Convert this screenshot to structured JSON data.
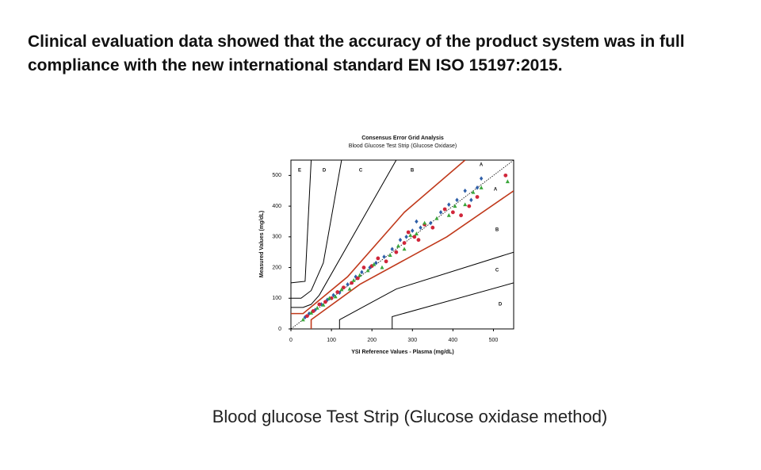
{
  "header": {
    "title": "Clinical evaluation data showed that the accuracy of the product system was in full compliance with the new international standard EN ISO 15197:2015."
  },
  "caption": "Blood glucose Test Strip (Glucose oxidase method)",
  "chart_data": {
    "type": "scatter",
    "title": "Consensus Error Grid Analysis",
    "subtitle": "Blood Glucose Test Strip (Glucose Oxidase)",
    "x_label": "YSI Reference Values - Plasma (mg/dL)",
    "y_label": "Measured Values (mg/dL)",
    "xlim": [
      0,
      550
    ],
    "ylim": [
      0,
      550
    ],
    "xticks": [
      0,
      100,
      200,
      300,
      400,
      500
    ],
    "yticks": [
      0,
      100,
      200,
      300,
      400,
      500
    ],
    "zone_labels": [
      "E",
      "D",
      "C",
      "B",
      "A",
      "A",
      "B",
      "C",
      "D"
    ],
    "boundaries": [
      {
        "color": "#c0391b",
        "x": [
          0,
          30,
          140,
          280,
          430
        ],
        "y": [
          50,
          50,
          170,
          380,
          550
        ]
      },
      {
        "color": "#c0391b",
        "x": [
          50,
          50,
          170,
          385,
          550
        ],
        "y": [
          0,
          30,
          145,
          300,
          450
        ]
      },
      {
        "color": "#000000",
        "x": [
          0,
          30,
          50,
          70,
          260
        ],
        "y": [
          70,
          70,
          80,
          110,
          550
        ]
      },
      {
        "color": "#000000",
        "x": [
          120,
          120,
          260,
          550
        ],
        "y": [
          0,
          30,
          130,
          250
        ]
      },
      {
        "color": "#000000",
        "x": [
          0,
          25,
          50,
          80,
          125
        ],
        "y": [
          100,
          100,
          125,
          215,
          550
        ]
      },
      {
        "color": "#000000",
        "x": [
          250,
          250,
          550
        ],
        "y": [
          0,
          40,
          150
        ]
      },
      {
        "color": "#000000",
        "x": [
          0,
          35,
          50
        ],
        "y": [
          150,
          155,
          550
        ]
      }
    ],
    "series": [
      {
        "color": "#2f5fa8",
        "marker": "diamond",
        "x": [
          35,
          45,
          60,
          75,
          90,
          105,
          120,
          140,
          160,
          175,
          195,
          210,
          230,
          250,
          270,
          285,
          300,
          310,
          320,
          345,
          370,
          390,
          410,
          430,
          445,
          460,
          470
        ],
        "values": [
          38,
          50,
          62,
          80,
          95,
          110,
          118,
          145,
          170,
          185,
          200,
          215,
          235,
          260,
          290,
          300,
          320,
          350,
          330,
          345,
          380,
          405,
          420,
          450,
          420,
          460,
          490
        ]
      },
      {
        "color": "#d0263a",
        "marker": "circle",
        "x": [
          40,
          55,
          70,
          85,
          100,
          115,
          130,
          150,
          165,
          180,
          200,
          215,
          235,
          260,
          280,
          290,
          305,
          315,
          330,
          350,
          380,
          400,
          420,
          440,
          460,
          530
        ],
        "values": [
          42,
          58,
          80,
          88,
          100,
          120,
          135,
          150,
          165,
          200,
          205,
          230,
          220,
          250,
          280,
          315,
          300,
          290,
          340,
          330,
          390,
          380,
          370,
          400,
          430,
          500
        ]
      },
      {
        "color": "#3aa63a",
        "marker": "triangle",
        "x": [
          30,
          50,
          65,
          80,
          95,
          110,
          125,
          145,
          155,
          170,
          190,
          205,
          225,
          245,
          265,
          280,
          295,
          310,
          330,
          360,
          390,
          405,
          430,
          450,
          470,
          535
        ],
        "values": [
          30,
          52,
          68,
          78,
          100,
          105,
          128,
          130,
          158,
          175,
          190,
          210,
          200,
          240,
          270,
          260,
          305,
          310,
          345,
          360,
          370,
          400,
          405,
          445,
          460,
          480
        ]
      }
    ]
  }
}
